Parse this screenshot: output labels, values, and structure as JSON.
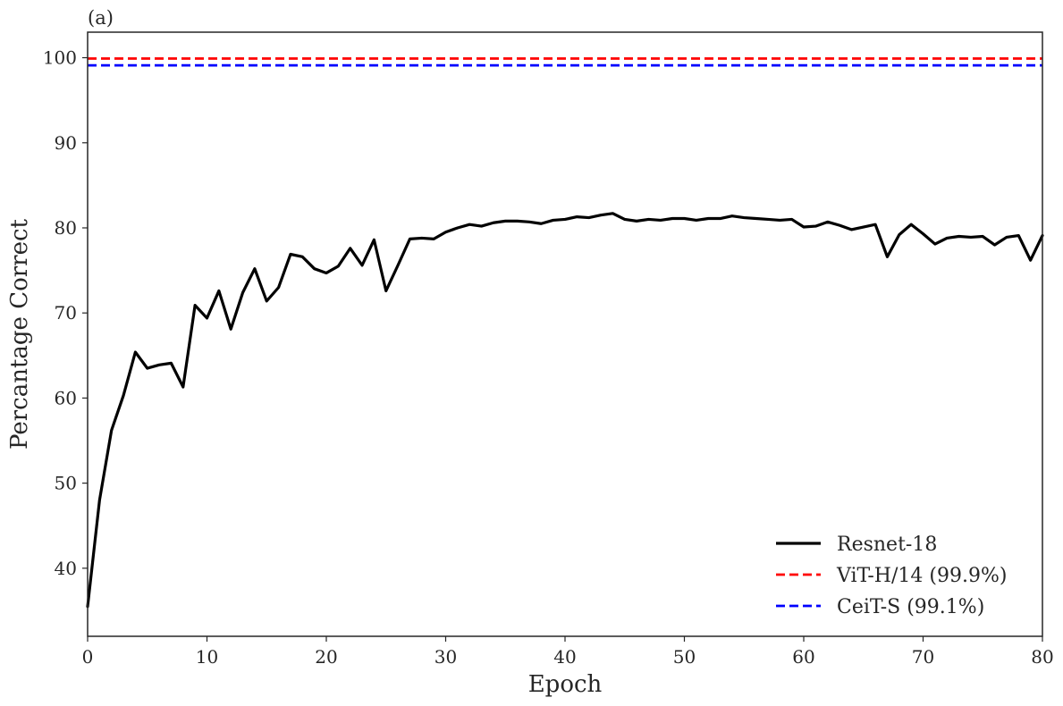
{
  "chart_data": {
    "type": "line",
    "panel_label": "(a)",
    "xlabel": "Epoch",
    "ylabel": "Percantage Correct",
    "xlim": [
      0,
      80
    ],
    "ylim": [
      32,
      103
    ],
    "xticks": [
      0,
      10,
      20,
      30,
      40,
      50,
      60,
      70,
      80
    ],
    "yticks": [
      40,
      50,
      60,
      70,
      80,
      90,
      100
    ],
    "grid": false,
    "legend_position": "lower-right",
    "series": [
      {
        "name": "Resnet-18",
        "style": "solid",
        "color": "#000000",
        "x": [
          0,
          1,
          2,
          3,
          4,
          5,
          6,
          7,
          8,
          9,
          10,
          11,
          12,
          13,
          14,
          15,
          16,
          17,
          18,
          19,
          20,
          21,
          22,
          23,
          24,
          25,
          26,
          27,
          28,
          29,
          30,
          31,
          32,
          33,
          34,
          35,
          36,
          37,
          38,
          39,
          40,
          41,
          42,
          43,
          44,
          45,
          46,
          47,
          48,
          49,
          50,
          51,
          52,
          53,
          54,
          55,
          56,
          57,
          58,
          59,
          60,
          61,
          62,
          63,
          64,
          65,
          66,
          67,
          68,
          69,
          70,
          71,
          72,
          73,
          74,
          75,
          76,
          77,
          78,
          79,
          80
        ],
        "y": [
          35.5,
          48.0,
          56.2,
          60.3,
          65.4,
          63.5,
          63.9,
          64.1,
          61.3,
          70.9,
          69.4,
          72.6,
          68.1,
          72.4,
          75.2,
          71.4,
          73.0,
          76.9,
          76.6,
          75.2,
          74.7,
          75.5,
          77.6,
          75.6,
          78.6,
          72.6,
          75.6,
          78.7,
          78.8,
          78.7,
          79.5,
          80.0,
          80.4,
          80.2,
          80.6,
          80.8,
          80.8,
          80.7,
          80.5,
          80.9,
          81.0,
          81.3,
          81.2,
          81.5,
          81.7,
          81.0,
          80.8,
          81.0,
          80.9,
          81.1,
          81.1,
          80.9,
          81.1,
          81.1,
          81.4,
          81.2,
          81.1,
          81.0,
          80.9,
          81.0,
          80.1,
          80.2,
          80.7,
          80.3,
          79.8,
          80.1,
          80.4,
          76.6,
          79.2,
          80.4,
          79.3,
          78.1,
          78.8,
          79.0,
          78.9,
          79.0,
          78.0,
          78.9,
          79.1,
          76.2,
          79.1
        ]
      },
      {
        "name": "ViT-H/14 (99.9%)",
        "style": "dashed",
        "color": "#ff0000",
        "constant": 99.9
      },
      {
        "name": "CeiT-S (99.1%)",
        "style": "dashed",
        "color": "#0000ff",
        "constant": 99.1
      }
    ]
  }
}
